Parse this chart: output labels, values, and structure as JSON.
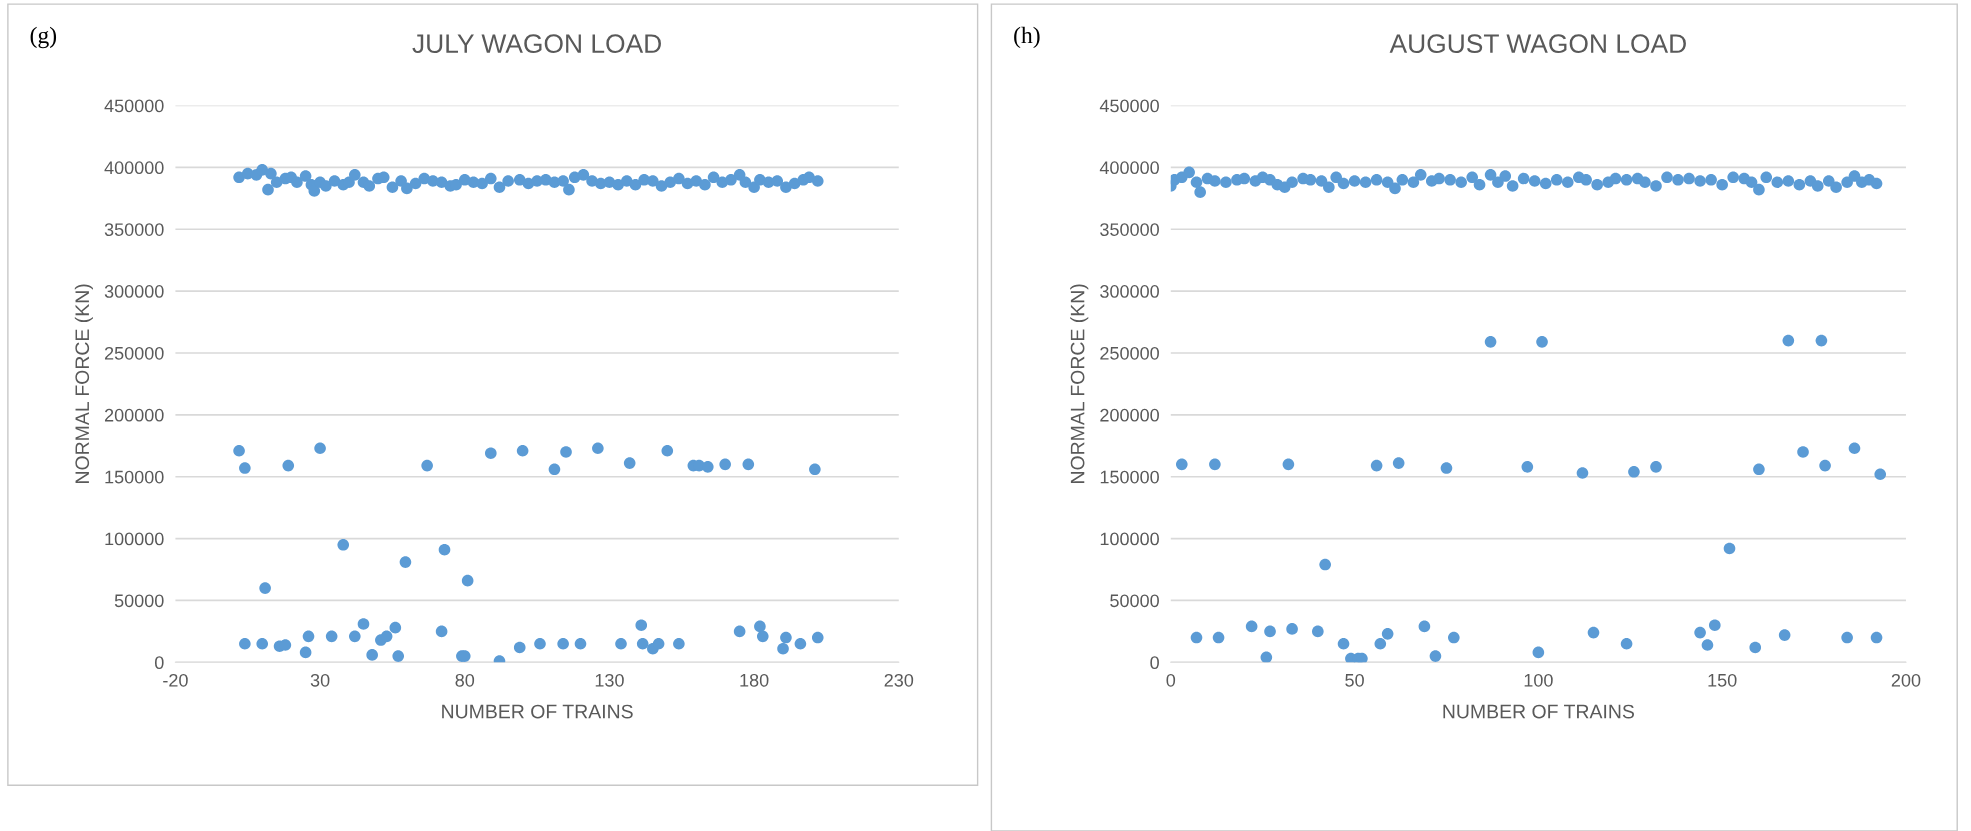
{
  "chart_data": [
    {
      "type": "scatter",
      "title": "JULY WAGON LOAD",
      "xlabel": "NUMBER OF TRAINS",
      "ylabel": "NORMAL FORCE (KN)",
      "annotations": [
        "(g)"
      ],
      "grid": "y",
      "marker": "circle",
      "xlim": [
        -20,
        230
      ],
      "xticks": [
        -20,
        30,
        80,
        130,
        180,
        230
      ],
      "ylim": [
        0,
        450000
      ],
      "yticks": [
        0,
        50000,
        100000,
        150000,
        200000,
        250000,
        300000,
        350000,
        400000,
        450000
      ],
      "series": [
        {
          "color": "#5b9bd5",
          "x": [
            2,
            5,
            8,
            10,
            12,
            13,
            15,
            18,
            20,
            22,
            25,
            27,
            28,
            30,
            32,
            35,
            38,
            40,
            42,
            45,
            47,
            50,
            52,
            55,
            58,
            60,
            63,
            66,
            69,
            72,
            75,
            77,
            80,
            83,
            86,
            89,
            92,
            95,
            99,
            102,
            105,
            108,
            111,
            114,
            116,
            118,
            121,
            124,
            127,
            130,
            133,
            136,
            139,
            142,
            145,
            148,
            151,
            154,
            157,
            160,
            163,
            166,
            169,
            172,
            175,
            177,
            180,
            182,
            185,
            188,
            191,
            194,
            197,
            199,
            202,
            2,
            4,
            4,
            10,
            11,
            16,
            18,
            19,
            25,
            26,
            30,
            34,
            38,
            42,
            45,
            48,
            51,
            53,
            56,
            57,
            59.5,
            67,
            72,
            73,
            79,
            80,
            81,
            89,
            92,
            100,
            99,
            106,
            111,
            114,
            115,
            120,
            126,
            134,
            137,
            141,
            141.5,
            145,
            147,
            150,
            154,
            159,
            161,
            164,
            170,
            175,
            178,
            182,
            183,
            190,
            191,
            196,
            201,
            202
          ],
          "values": [
            392000,
            395000,
            394000,
            398000,
            382000,
            395000,
            388000,
            391000,
            392000,
            388000,
            393000,
            386000,
            381000,
            388000,
            385000,
            389000,
            386000,
            388000,
            394000,
            388000,
            385000,
            391000,
            392000,
            384000,
            389000,
            383000,
            387000,
            391000,
            389000,
            388000,
            385000,
            386000,
            390000,
            388000,
            387000,
            391000,
            384000,
            389000,
            390000,
            387000,
            389000,
            390000,
            388000,
            389000,
            382000,
            392000,
            394000,
            389000,
            387000,
            388000,
            386000,
            389000,
            386000,
            390000,
            389000,
            385000,
            388000,
            391000,
            387000,
            389000,
            386000,
            392000,
            388000,
            390000,
            394000,
            388000,
            384000,
            390000,
            388000,
            389000,
            384000,
            387000,
            390000,
            392000,
            389000,
            171000,
            157000,
            15000,
            15000,
            60000,
            13000,
            14000,
            159000,
            8000,
            21000,
            173000,
            21000,
            95000,
            21000,
            31000,
            6000,
            18000,
            21000,
            28000,
            5000,
            81000,
            159000,
            25000,
            91000,
            5000,
            5000,
            66000,
            169000,
            1000,
            171000,
            12000,
            15000,
            156000,
            15000,
            170000,
            15000,
            173000,
            15000,
            161000,
            30000,
            15000,
            11000,
            15000,
            171000,
            15000,
            159000,
            159000,
            158000,
            160000,
            25000,
            160000,
            29000,
            21000,
            11000,
            20000,
            15000,
            156000,
            20000
          ]
        }
      ]
    },
    {
      "type": "scatter",
      "title": "AUGUST WAGON LOAD",
      "xlabel": "NUMBER OF TRAINS",
      "ylabel": "NORMAL FORCE (KN)",
      "annotations": [
        "(h)"
      ],
      "grid": "y",
      "marker": "circle",
      "xlim": [
        0,
        200
      ],
      "xticks": [
        0,
        50,
        100,
        150,
        200
      ],
      "ylim": [
        0,
        450000
      ],
      "yticks": [
        0,
        50000,
        100000,
        150000,
        200000,
        250000,
        300000,
        350000,
        400000,
        450000
      ],
      "series": [
        {
          "color": "#5b9bd5",
          "x": [
            0,
            1,
            3,
            5,
            7,
            8,
            10,
            12,
            15,
            18,
            20,
            23,
            25,
            27,
            29,
            31,
            33,
            36,
            38,
            41,
            43,
            45,
            47,
            50,
            53,
            56,
            59,
            61,
            63,
            66,
            68,
            71,
            73,
            76,
            79,
            82,
            84,
            87,
            89,
            91,
            93,
            96,
            99,
            102,
            105,
            108,
            111,
            113,
            116,
            119,
            121,
            124,
            127,
            129,
            132,
            135,
            138,
            141,
            144,
            147,
            150,
            153,
            156,
            158,
            160,
            162,
            165,
            168,
            171,
            174,
            176,
            179,
            181,
            184,
            186,
            188,
            190,
            192,
            3,
            7,
            12,
            13,
            22,
            26,
            27,
            32,
            33,
            40,
            42,
            47,
            49,
            51,
            52,
            56,
            57,
            59,
            62,
            69,
            72,
            75,
            77,
            87,
            97,
            100,
            101,
            112,
            115,
            124,
            126,
            132,
            144,
            146,
            148,
            152,
            159,
            160,
            167,
            168,
            172,
            177,
            178,
            184,
            186,
            192,
            193
          ],
          "values": [
            385000,
            390000,
            392000,
            396000,
            388000,
            380000,
            391000,
            389000,
            388000,
            390000,
            391000,
            389000,
            392000,
            390000,
            386000,
            384000,
            388000,
            391000,
            390000,
            389000,
            384000,
            392000,
            387000,
            389000,
            388000,
            390000,
            388000,
            383000,
            390000,
            388000,
            394000,
            389000,
            391000,
            390000,
            388000,
            392000,
            386000,
            394000,
            388000,
            393000,
            385000,
            391000,
            389000,
            387000,
            390000,
            388000,
            392000,
            390000,
            386000,
            388000,
            391000,
            390000,
            391000,
            388000,
            385000,
            392000,
            390000,
            391000,
            389000,
            390000,
            386000,
            392000,
            391000,
            388000,
            382000,
            392000,
            388000,
            389000,
            386000,
            389000,
            385000,
            389000,
            384000,
            388000,
            393000,
            388000,
            390000,
            387000,
            160000,
            20000,
            160000,
            20000,
            29000,
            4000,
            25000,
            160000,
            27000,
            25000,
            79000,
            15000,
            3000,
            3000,
            3000,
            159000,
            15000,
            23000,
            161000,
            29000,
            5000,
            157000,
            20000,
            259000,
            158000,
            8000,
            259000,
            153000,
            24000,
            15000,
            154000,
            158000,
            24000,
            14000,
            30000,
            92000,
            12000,
            156000,
            22000,
            260000,
            170000,
            260000,
            159000,
            20000,
            173000,
            20000,
            152000
          ]
        }
      ]
    }
  ]
}
